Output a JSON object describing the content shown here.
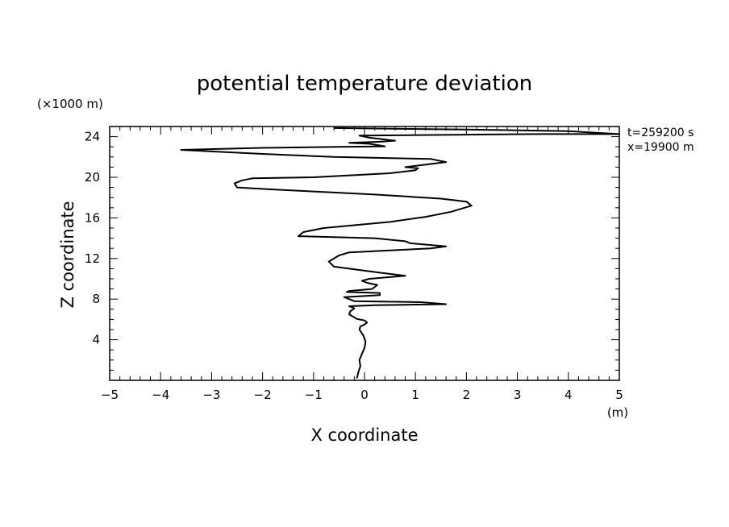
{
  "chart_data": {
    "type": "line",
    "title": "potential temperature deviation",
    "xlabel": "X coordinate",
    "ylabel": "Z coordinate",
    "x_unit": "(m)",
    "y_unit": "(×1000 m)",
    "xlim": [
      -5,
      5
    ],
    "ylim": [
      0,
      25
    ],
    "xticks": [
      -5,
      -4,
      -3,
      -2,
      -1,
      0,
      1,
      2,
      3,
      4,
      5
    ],
    "yticks": [
      4,
      8,
      12,
      16,
      20,
      24
    ],
    "xtick_labels": [
      "−5",
      "−4",
      "−3",
      "−2",
      "−1",
      "0",
      "1",
      "2",
      "3",
      "4",
      "5"
    ],
    "ytick_labels": [
      "4",
      "8",
      "12",
      "16",
      "20",
      "24"
    ],
    "grid": false,
    "annotations": [
      "t=259200 s",
      "x=19900 m"
    ],
    "series": [
      {
        "x": [
          -0.15,
          -0.12,
          -0.08,
          -0.1,
          -0.05,
          0.0,
          0.02,
          -0.02,
          -0.1,
          -0.08,
          0.0,
          0.05,
          0.0,
          -0.1,
          -0.15,
          -0.2,
          -0.3,
          -0.28,
          -0.22,
          -0.2,
          -0.25,
          -0.3,
          0.2,
          1.6,
          1.1,
          -0.2,
          -0.4,
          0.3,
          0.3,
          -0.35,
          -0.3,
          0.15,
          0.25,
          0.05,
          -0.05,
          0.1,
          0.8,
          0.3,
          -0.6,
          -0.7,
          -0.5,
          -0.3,
          1.3,
          1.6,
          0.9,
          0.8,
          0.2,
          -1.3,
          -1.2,
          -0.8,
          0.5,
          1.2,
          1.7,
          2.1,
          2.0,
          1.5,
          0.2,
          -1.0,
          -1.8,
          -2.5,
          -2.55,
          -2.4,
          -2.2,
          -1.0,
          0.5,
          1.0,
          1.05,
          0.8,
          1.6,
          1.3,
          -0.6,
          -2.0,
          -3.6,
          -2.0,
          -0.5,
          0.4,
          0.1,
          -0.3,
          0.3,
          0.6,
          0.1,
          -0.1,
          2.0,
          3.5,
          5.0,
          4.0,
          2.0,
          -0.6
        ],
        "y": [
          0.2,
          0.8,
          1.4,
          2.0,
          2.6,
          3.2,
          3.8,
          4.4,
          5.0,
          5.3,
          5.5,
          5.7,
          5.9,
          6.0,
          6.05,
          6.2,
          6.5,
          6.8,
          7.0,
          7.1,
          7.2,
          7.3,
          7.4,
          7.5,
          7.7,
          7.8,
          8.2,
          8.4,
          8.6,
          8.7,
          8.8,
          9.0,
          9.4,
          9.6,
          9.8,
          10.0,
          10.3,
          10.6,
          11.2,
          11.7,
          12.3,
          12.6,
          13.0,
          13.2,
          13.5,
          13.7,
          14.0,
          14.2,
          14.6,
          15.0,
          15.6,
          16.1,
          16.6,
          17.2,
          17.6,
          17.9,
          18.3,
          18.6,
          18.8,
          19.0,
          19.4,
          19.7,
          19.9,
          20.0,
          20.4,
          20.7,
          20.9,
          21.0,
          21.5,
          21.8,
          22.0,
          22.3,
          22.7,
          22.9,
          23.0,
          23.05,
          23.3,
          23.4,
          23.5,
          23.6,
          23.9,
          24.1,
          24.2,
          24.25,
          24.25,
          24.55,
          24.7,
          24.85
        ]
      }
    ]
  }
}
